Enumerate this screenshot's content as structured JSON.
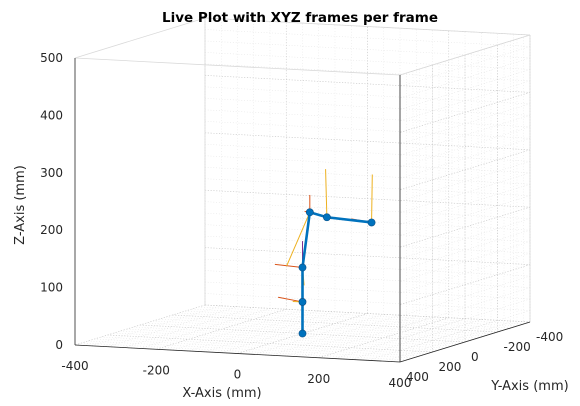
{
  "chart_data": {
    "type": "scatter",
    "title": "Live Plot with XYZ frames per frame",
    "xlabel": "X-Axis (mm)",
    "ylabel": "Y-Axis (mm)",
    "zlabel": "Z-Axis (mm)",
    "xlim": [
      -400,
      400
    ],
    "ylim": [
      -400,
      400
    ],
    "zlim": [
      0,
      500
    ],
    "x_ticks": [
      "400",
      "200",
      "0",
      "-200",
      "-400"
    ],
    "y_ticks": [
      "400",
      "200",
      "0",
      "-200",
      "-400"
    ],
    "z_ticks": [
      "0",
      "100",
      "200",
      "300",
      "400",
      "500"
    ],
    "grid": true,
    "minor_grid": true,
    "view": "3d",
    "series": [
      {
        "type": "line3d",
        "color": "#0072BD",
        "points": [
          {
            "x": 0,
            "y": 0,
            "z": 0
          },
          {
            "x": 0,
            "y": 0,
            "z": 55
          },
          {
            "x": 0,
            "y": 0,
            "z": 115
          },
          {
            "x": 50,
            "y": 80,
            "z": 220
          },
          {
            "x": 120,
            "y": 150,
            "z": 220
          },
          {
            "x": 230,
            "y": 150,
            "z": 215
          }
        ]
      }
    ],
    "frames": [
      {
        "origin": 1,
        "x_axis": [
          -60,
          0,
          6
        ],
        "y_axis": [
          0,
          60,
          6
        ],
        "z_axis": [
          0,
          0,
          0
        ]
      },
      {
        "origin": 2,
        "x_axis": [
          -68,
          0,
          3
        ],
        "y_axis": [
          0,
          -10,
          -32
        ],
        "z_axis": [
          0,
          0,
          46
        ]
      },
      {
        "origin": 3,
        "x_axis": [
          -40,
          -100,
          20
        ],
        "y_axis": [
          -35,
          55,
          -90
        ],
        "z_axis": [
          0,
          0,
          0
        ]
      },
      {
        "origin": 4,
        "x_axis": [
          -56,
          -3,
          8
        ],
        "y_axis": [
          -2,
          3,
          84
        ],
        "z_axis": [
          0,
          0,
          0
        ]
      },
      {
        "origin": 5,
        "x_axis": [
          -48,
          5,
          5
        ],
        "y_axis": [
          3,
          3,
          84
        ],
        "z_axis": [
          0,
          0,
          0
        ]
      }
    ],
    "colors": {
      "arm": "#0072BD",
      "frame_x": "#D95319",
      "frame_y": "#EDB120",
      "frame_z": "#7E2F8E"
    }
  }
}
